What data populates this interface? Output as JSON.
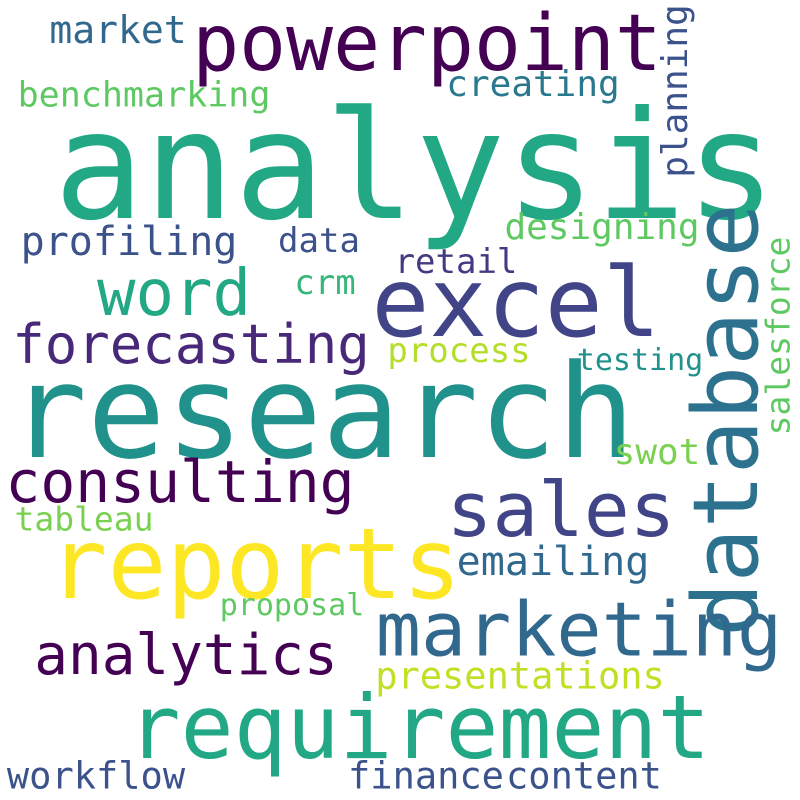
{
  "words": [
    {
      "id": "analysis",
      "text": "analysis",
      "color": "#22a884"
    },
    {
      "id": "powerpoint",
      "text": "powerpoint",
      "color": "#440154"
    },
    {
      "id": "market",
      "text": "market",
      "color": "#31688e"
    },
    {
      "id": "planning",
      "text": "planning",
      "color": "#3b528b"
    },
    {
      "id": "creating",
      "text": "creating",
      "color": "#2a788e"
    },
    {
      "id": "benchmarking",
      "text": "benchmarking",
      "color": "#5ec962"
    },
    {
      "id": "designing",
      "text": "designing",
      "color": "#5ec962"
    },
    {
      "id": "profiling",
      "text": "profiling",
      "color": "#3b528b"
    },
    {
      "id": "data",
      "text": "data",
      "color": "#3b528b"
    },
    {
      "id": "retail",
      "text": "retail",
      "color": "#443983"
    },
    {
      "id": "word",
      "text": "word",
      "color": "#22a884"
    },
    {
      "id": "crm",
      "text": "crm",
      "color": "#35b779"
    },
    {
      "id": "excel",
      "text": "excel",
      "color": "#414487"
    },
    {
      "id": "database",
      "text": "database",
      "color": "#2c728e"
    },
    {
      "id": "salesforce",
      "text": "salesforce",
      "color": "#5ec962"
    },
    {
      "id": "forecasting",
      "text": "forecasting",
      "color": "#482878"
    },
    {
      "id": "process",
      "text": "process",
      "color": "#b5de2b"
    },
    {
      "id": "testing",
      "text": "testing",
      "color": "#21918c"
    },
    {
      "id": "research",
      "text": "research",
      "color": "#21918c"
    },
    {
      "id": "swot",
      "text": "swot",
      "color": "#7ad151"
    },
    {
      "id": "consulting",
      "text": "consulting",
      "color": "#440154"
    },
    {
      "id": "sales",
      "text": "sales",
      "color": "#414487"
    },
    {
      "id": "tableau",
      "text": "tableau",
      "color": "#7ad151"
    },
    {
      "id": "reports",
      "text": "reports",
      "color": "#fde725"
    },
    {
      "id": "emailing",
      "text": "emailing",
      "color": "#31688e"
    },
    {
      "id": "marketing",
      "text": "marketing",
      "color": "#31688e"
    },
    {
      "id": "proposal",
      "text": "proposal",
      "color": "#5ec962"
    },
    {
      "id": "analytics",
      "text": "analytics",
      "color": "#440154"
    },
    {
      "id": "presentations",
      "text": "presentations",
      "color": "#c2df23"
    },
    {
      "id": "requirement",
      "text": "requirement",
      "color": "#22a884"
    },
    {
      "id": "workflow",
      "text": "workflow",
      "color": "#3b528b"
    },
    {
      "id": "finance",
      "text": "finance",
      "color": "#3b528b"
    },
    {
      "id": "content",
      "text": "content",
      "color": "#3b528b"
    }
  ]
}
